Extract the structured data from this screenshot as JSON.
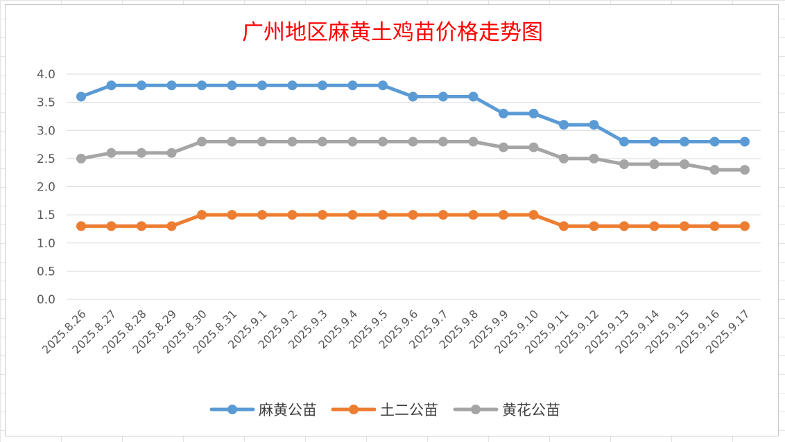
{
  "chart_data": {
    "type": "line",
    "title": "广州地区麻黄土鸡苗价格走势图",
    "xlabel": "",
    "ylabel": "",
    "ylim": [
      0,
      4
    ],
    "ytick_labels": [
      "0.0",
      "0.5",
      "1.0",
      "1.5",
      "2.0",
      "2.5",
      "3.0",
      "3.5",
      "4.0"
    ],
    "grid": "horizontal",
    "legend_position": "bottom",
    "categories": [
      "2025.8.26",
      "2025.8.27",
      "2025.8.28",
      "2025.8.29",
      "2025.8.30",
      "2025.8.31",
      "2025.9.1",
      "2025.9.2",
      "2025.9.3",
      "2025.9.4",
      "2025.9.5",
      "2025.9.6",
      "2025.9.7",
      "2025.9.8",
      "2025.9.9",
      "2025.9.10",
      "2025.9.11",
      "2025.9.12",
      "2025.9.13",
      "2025.9.14",
      "2025.9.15",
      "2025.9.16",
      "2025.9.17"
    ],
    "series": [
      {
        "name": "麻黄公苗",
        "color": "#5b9bd5",
        "values": [
          3.6,
          3.8,
          3.8,
          3.8,
          3.8,
          3.8,
          3.8,
          3.8,
          3.8,
          3.8,
          3.8,
          3.6,
          3.6,
          3.6,
          3.3,
          3.3,
          3.1,
          3.1,
          2.8,
          2.8,
          2.8,
          2.8,
          2.8
        ]
      },
      {
        "name": "土二公苗",
        "color": "#ed7d31",
        "values": [
          1.3,
          1.3,
          1.3,
          1.3,
          1.5,
          1.5,
          1.5,
          1.5,
          1.5,
          1.5,
          1.5,
          1.5,
          1.5,
          1.5,
          1.5,
          1.5,
          1.3,
          1.3,
          1.3,
          1.3,
          1.3,
          1.3,
          1.3
        ]
      },
      {
        "name": "黄花公苗",
        "color": "#a5a5a5",
        "values": [
          2.5,
          2.6,
          2.6,
          2.6,
          2.8,
          2.8,
          2.8,
          2.8,
          2.8,
          2.8,
          2.8,
          2.8,
          2.8,
          2.8,
          2.7,
          2.7,
          2.5,
          2.5,
          2.4,
          2.4,
          2.4,
          2.3,
          2.3
        ]
      }
    ],
    "title_color": "#ff0000",
    "gridline_color": "#d9d9d9",
    "tick_color": "#595959"
  }
}
